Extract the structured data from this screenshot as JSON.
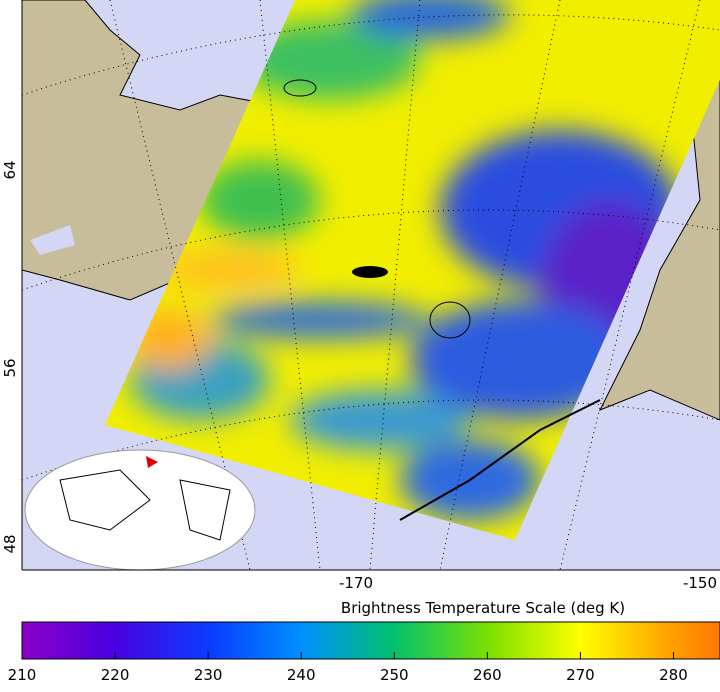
{
  "map": {
    "lat_labels": [
      "64",
      "56",
      "48"
    ],
    "lon_labels": [
      "-170",
      "-150"
    ]
  },
  "colorbar": {
    "title": "Brightness Temperature Scale (deg K)",
    "range": [
      210,
      285
    ],
    "ticks": [
      210,
      220,
      230,
      240,
      250,
      260,
      270,
      280
    ]
  }
}
